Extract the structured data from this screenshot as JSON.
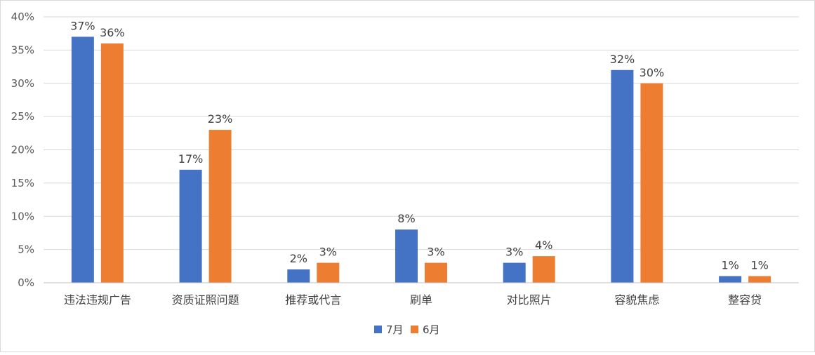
{
  "chart_data": {
    "type": "bar",
    "categories": [
      "违法违规广告",
      "资质证照问题",
      "推荐或代言",
      "刷单",
      "对比照片",
      "容貌焦虑",
      "整容贷"
    ],
    "series": [
      {
        "name": "7月",
        "values": [
          37,
          17,
          2,
          8,
          3,
          32,
          1
        ],
        "labels": [
          "37%",
          "17%",
          "2%",
          "8%",
          "3%",
          "32%",
          "1%"
        ],
        "color": "#4472C4"
      },
      {
        "name": "6月",
        "values": [
          36,
          23,
          3,
          3,
          4,
          30,
          1
        ],
        "labels": [
          "36%",
          "23%",
          "3%",
          "3%",
          "4%",
          "30%",
          "1%"
        ],
        "color": "#ED7D31"
      }
    ],
    "y_ticks": [
      0,
      5,
      10,
      15,
      20,
      25,
      30,
      35,
      40
    ],
    "y_tick_labels": [
      "0%",
      "5%",
      "10%",
      "15%",
      "20%",
      "25%",
      "30%",
      "35%",
      "40%"
    ],
    "ylim": [
      0,
      40
    ],
    "grid": true,
    "legend_position": "bottom",
    "colors": {
      "gridline": "#d9d9d9",
      "axis": "#bfbfbf"
    }
  }
}
